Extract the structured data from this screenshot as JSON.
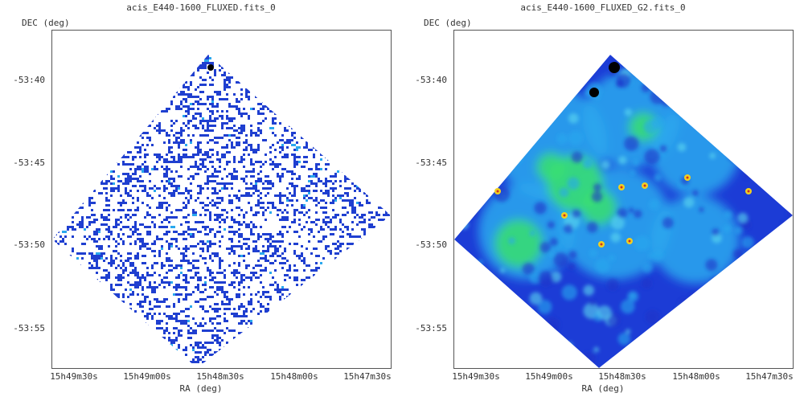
{
  "panels": [
    {
      "title": "acis_E440-1600_FLUXED.fits_0",
      "ylabel": "DEC (deg)",
      "xlabel": "RA (deg)",
      "yticks": [
        "-53:40",
        "-53:45",
        "-53:50",
        "-53:55"
      ],
      "xticks": [
        "15h49m30s",
        "15h49m00s",
        "15h48m30s",
        "15h48m00s",
        "15h47m30s"
      ]
    },
    {
      "title": "acis_E440-1600_FLUXED_G2.fits_0",
      "ylabel": "DEC (deg)",
      "xlabel": "RA (deg)",
      "yticks": [
        "-53:40",
        "-53:45",
        "-53:50",
        "-53:55"
      ],
      "xticks": [
        "15h49m30s",
        "15h49m00s",
        "15h48m30s",
        "15h48m00s",
        "15h47m30s"
      ]
    }
  ],
  "colors": {
    "sparse_pixels": "#1f3fd0",
    "smooth_low": "#1c3cd6",
    "smooth_mid": "#2aa8ee",
    "smooth_high": "#38e070",
    "hotspot": "#f0d020",
    "source": "#000000"
  }
}
